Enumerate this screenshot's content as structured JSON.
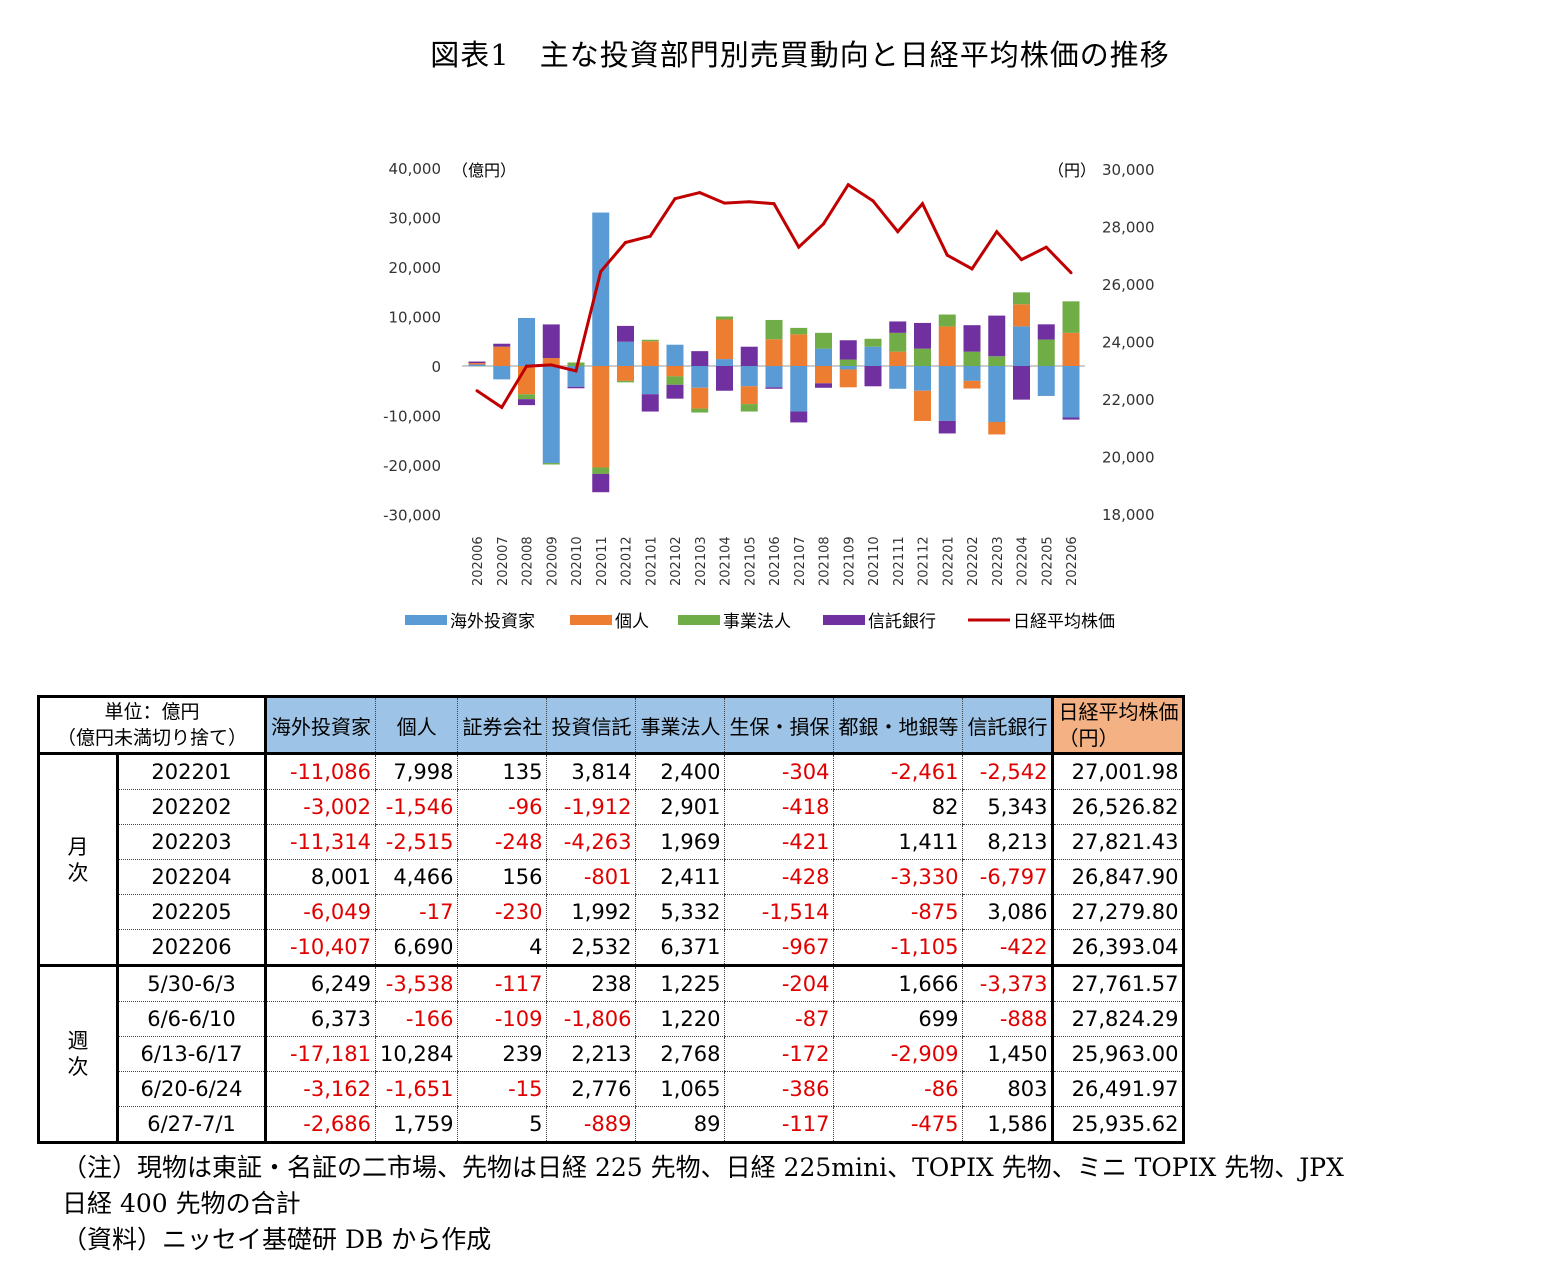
{
  "title": "図表1　主な投資部門別売買動向と日経平均株価の推移",
  "chart_data": {
    "type": "bar+line",
    "title": "図表1　主な投資部門別売買動向と日経平均株価の推移",
    "left_unit": "（億円）",
    "right_unit": "（円）",
    "left_ticks": [
      "40,000",
      "30,000",
      "20,000",
      "10,000",
      "0",
      "-10,000",
      "-20,000",
      "-30,000"
    ],
    "left_tick_values": [
      40000,
      30000,
      20000,
      10000,
      0,
      -10000,
      -20000,
      -30000
    ],
    "right_ticks": [
      "30,000",
      "28,000",
      "26,000",
      "24,000",
      "22,000",
      "20,000",
      "18,000"
    ],
    "right_tick_values": [
      30000,
      28000,
      26000,
      24000,
      22000,
      20000,
      18000
    ],
    "ylim_left": [
      -30000,
      40000
    ],
    "ylim_right": [
      18000,
      30000
    ],
    "categories": [
      "202006",
      "202007",
      "202008",
      "202009",
      "202010",
      "202011",
      "202012",
      "202101",
      "202102",
      "202103",
      "202104",
      "202105",
      "202106",
      "202107",
      "202108",
      "202109",
      "202110",
      "202111",
      "202112",
      "202201",
      "202202",
      "202203",
      "202204",
      "202205",
      "202206"
    ],
    "series": [
      {
        "name": "海外投資家",
        "type": "bar",
        "color": "#5B9BD5",
        "values": [
          300,
          -2700,
          9700,
          -19600,
          -4200,
          31000,
          4900,
          -5700,
          4300,
          -4400,
          1400,
          -4100,
          -4300,
          -9200,
          3500,
          -700,
          3900,
          -4600,
          -5000,
          -11086,
          -3002,
          -11314,
          8001,
          -6049,
          -10407
        ]
      },
      {
        "name": "個人",
        "type": "bar",
        "color": "#ED7D31",
        "values": [
          300,
          3900,
          -5700,
          1600,
          0,
          -20500,
          -3000,
          5000,
          -2100,
          -4200,
          8000,
          -3600,
          5400,
          6400,
          -3500,
          -3600,
          0,
          2900,
          -6100,
          7998,
          -1546,
          -2515,
          4466,
          -17,
          6690
        ]
      },
      {
        "name": "事業法人",
        "type": "bar",
        "color": "#70AD47",
        "values": [
          0,
          0,
          -1000,
          -300,
          700,
          -1300,
          -300,
          300,
          -1700,
          -800,
          600,
          -1500,
          3900,
          1300,
          3200,
          1300,
          1600,
          3800,
          3500,
          2400,
          2901,
          1969,
          2411,
          5332,
          6371
        ]
      },
      {
        "name": "信託銀行",
        "type": "bar",
        "color": "#7030A0",
        "values": [
          300,
          600,
          -1200,
          6800,
          -300,
          -3700,
          3200,
          -3500,
          -2800,
          3000,
          -5000,
          3900,
          -300,
          -2200,
          -900,
          3900,
          -4100,
          2300,
          5200,
          -2542,
          5343,
          8213,
          -6797,
          3086,
          -422
        ]
      },
      {
        "name": "日経平均株価",
        "type": "line",
        "axis": "right",
        "color": "#C00000",
        "values": [
          22288,
          21710,
          23140,
          23185,
          22977,
          26434,
          27444,
          27663,
          28966,
          29179,
          28813,
          28860,
          28792,
          27284,
          28090,
          29453,
          28893,
          27822,
          28792,
          27002,
          26527,
          27821,
          26848,
          27280,
          26393
        ]
      }
    ],
    "legend_position": "bottom"
  },
  "table": {
    "unit_line1": "単位：億円",
    "unit_line2": "（億円未満切り捨て）",
    "headers": [
      "海外投資家",
      "個人",
      "証券会社",
      "投資信託",
      "事業法人",
      "生保・損保",
      "都銀・地銀等",
      "信託銀行"
    ],
    "nikkei_header1": "日経平均株価",
    "nikkei_header2": "（円）",
    "group_monthly": "月\n次",
    "group_weekly": "週\n次",
    "monthly": [
      {
        "label": "202201",
        "values": [
          "-11,086",
          "7,998",
          "135",
          "3,814",
          "2,400",
          "-304",
          "-2,461",
          "-2,542",
          "27,001.98"
        ]
      },
      {
        "label": "202202",
        "values": [
          "-3,002",
          "-1,546",
          "-96",
          "-1,912",
          "2,901",
          "-418",
          "82",
          "5,343",
          "26,526.82"
        ]
      },
      {
        "label": "202203",
        "values": [
          "-11,314",
          "-2,515",
          "-248",
          "-4,263",
          "1,969",
          "-421",
          "1,411",
          "8,213",
          "27,821.43"
        ]
      },
      {
        "label": "202204",
        "values": [
          "8,001",
          "4,466",
          "156",
          "-801",
          "2,411",
          "-428",
          "-3,330",
          "-6,797",
          "26,847.90"
        ]
      },
      {
        "label": "202205",
        "values": [
          "-6,049",
          "-17",
          "-230",
          "1,992",
          "5,332",
          "-1,514",
          "-875",
          "3,086",
          "27,279.80"
        ]
      },
      {
        "label": "202206",
        "values": [
          "-10,407",
          "6,690",
          "4",
          "2,532",
          "6,371",
          "-967",
          "-1,105",
          "-422",
          "26,393.04"
        ]
      }
    ],
    "weekly": [
      {
        "label": "5/30-6/3",
        "values": [
          "6,249",
          "-3,538",
          "-117",
          "238",
          "1,225",
          "-204",
          "1,666",
          "-3,373",
          "27,761.57"
        ]
      },
      {
        "label": "6/6-6/10",
        "values": [
          "6,373",
          "-166",
          "-109",
          "-1,806",
          "1,220",
          "-87",
          "699",
          "-888",
          "27,824.29"
        ]
      },
      {
        "label": "6/13-6/17",
        "values": [
          "-17,181",
          "10,284",
          "239",
          "2,213",
          "2,768",
          "-172",
          "-2,909",
          "1,450",
          "25,963.00"
        ]
      },
      {
        "label": "6/20-6/24",
        "values": [
          "-3,162",
          "-1,651",
          "-15",
          "2,776",
          "1,065",
          "-386",
          "-86",
          "803",
          "26,491.97"
        ]
      },
      {
        "label": "6/27-7/1",
        "values": [
          "-2,686",
          "1,759",
          "5",
          "-889",
          "89",
          "-117",
          "-475",
          "1,586",
          "25,935.62"
        ]
      }
    ]
  },
  "notes": [
    "（注）現物は東証・名証の二市場、先物は日経 225 先物、日経 225mini、TOPIX 先物、ミニ TOPIX 先物、JPX",
    "日経 400 先物の合計",
    "（資料）ニッセイ基礎研 DB から作成"
  ]
}
